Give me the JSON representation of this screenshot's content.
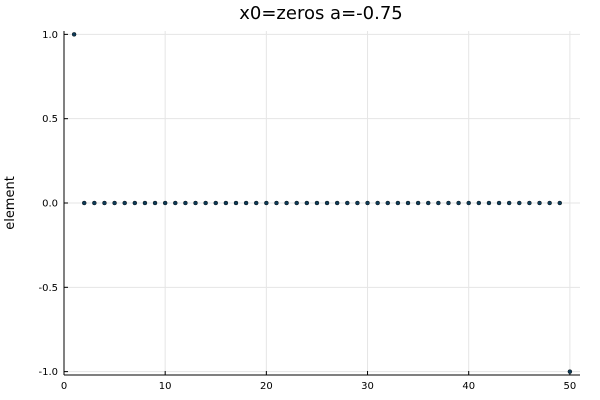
{
  "chart_data": {
    "type": "scatter",
    "title": "x0=zeros a=-0.75",
    "xlabel": "",
    "ylabel": "element",
    "xlim": [
      0,
      51
    ],
    "ylim": [
      -1.02,
      1.02
    ],
    "xticks": [
      0,
      10,
      20,
      30,
      40,
      50
    ],
    "yticks": [
      -1.0,
      -0.5,
      0.0,
      0.5,
      1.0
    ],
    "xtick_labels": [
      "0",
      "10",
      "20",
      "30",
      "40",
      "50"
    ],
    "ytick_labels": [
      "-1.0",
      "-0.5",
      "0.0",
      "0.5",
      "1.0"
    ],
    "grid": true,
    "legend": "none",
    "colors": {
      "marker": "#0e3b57",
      "grid": "#e5e5e5",
      "axis": "#000000"
    },
    "series": [
      {
        "x": [
          1,
          2,
          3,
          4,
          5,
          6,
          7,
          8,
          9,
          10,
          11,
          12,
          13,
          14,
          15,
          16,
          17,
          18,
          19,
          20,
          21,
          22,
          23,
          24,
          25,
          26,
          27,
          28,
          29,
          30,
          31,
          32,
          33,
          34,
          35,
          36,
          37,
          38,
          39,
          40,
          41,
          42,
          43,
          44,
          45,
          46,
          47,
          48,
          49,
          50
        ],
        "y": [
          1,
          0,
          0,
          0,
          0,
          0,
          0,
          0,
          0,
          0,
          0,
          0,
          0,
          0,
          0,
          0,
          0,
          0,
          0,
          0,
          0,
          0,
          0,
          0,
          0,
          0,
          0,
          0,
          0,
          0,
          0,
          0,
          0,
          0,
          0,
          0,
          0,
          0,
          0,
          0,
          0,
          0,
          0,
          0,
          0,
          0,
          0,
          0,
          0,
          -1
        ]
      }
    ]
  }
}
